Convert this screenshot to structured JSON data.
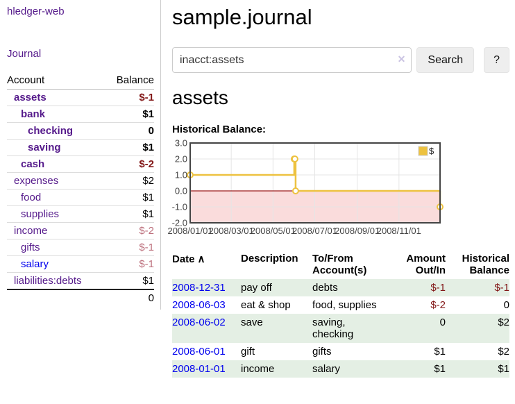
{
  "app": {
    "brand": "hledger-web"
  },
  "sidebar": {
    "journal_link": "Journal",
    "table": {
      "headers": {
        "account": "Account",
        "balance": "Balance"
      },
      "rows": [
        {
          "name": "assets",
          "indent": 1,
          "bold": true,
          "link": "purple",
          "balance": "$-1",
          "tone": "neg-strong"
        },
        {
          "name": "bank",
          "indent": 2,
          "bold": true,
          "link": "purple",
          "balance": "$1",
          "tone": ""
        },
        {
          "name": "checking",
          "indent": 3,
          "bold": true,
          "link": "purple",
          "balance": "0",
          "tone": ""
        },
        {
          "name": "saving",
          "indent": 3,
          "bold": true,
          "link": "purple",
          "balance": "$1",
          "tone": ""
        },
        {
          "name": "cash",
          "indent": 2,
          "bold": true,
          "link": "purple",
          "balance": "$-2",
          "tone": "neg-strong"
        },
        {
          "name": "expenses",
          "indent": 1,
          "bold": false,
          "link": "purple",
          "balance": "$2",
          "tone": ""
        },
        {
          "name": "food",
          "indent": 2,
          "bold": false,
          "link": "purple",
          "balance": "$1",
          "tone": ""
        },
        {
          "name": "supplies",
          "indent": 2,
          "bold": false,
          "link": "purple",
          "balance": "$1",
          "tone": ""
        },
        {
          "name": "income",
          "indent": 1,
          "bold": false,
          "link": "purple",
          "balance": "$-2",
          "tone": "neg-soft"
        },
        {
          "name": "gifts",
          "indent": 2,
          "bold": false,
          "link": "purple",
          "balance": "$-1",
          "tone": "neg-soft"
        },
        {
          "name": "salary",
          "indent": 2,
          "bold": false,
          "link": "blue",
          "balance": "$-1",
          "tone": "neg-soft"
        },
        {
          "name": "liabilities:debts",
          "indent": 1,
          "bold": false,
          "link": "purple",
          "balance": "$1",
          "tone": ""
        }
      ],
      "total": "0"
    }
  },
  "main": {
    "title": "sample.journal",
    "search": {
      "value": "inacct:assets",
      "clear_icon": "✕",
      "button": "Search",
      "help_button": "?"
    },
    "account_heading": "assets",
    "chart_heading": "Historical Balance:"
  },
  "chart_data": {
    "type": "line",
    "step": true,
    "title": "Historical Balance:",
    "series": [
      {
        "name": "$",
        "color": "#edc240",
        "points": [
          [
            "2008-01-01",
            1
          ],
          [
            "2008-06-01",
            2
          ],
          [
            "2008-06-02",
            2
          ],
          [
            "2008-06-03",
            0
          ],
          [
            "2008-12-31",
            -1
          ]
        ]
      }
    ],
    "xrange": [
      "2008-01-01",
      "2008-12-31"
    ],
    "ylim": [
      -2,
      3
    ],
    "yticks": [
      "3.0",
      "2.0",
      "1.0",
      "0.0",
      "-1.0",
      "-2.0"
    ],
    "xticks": [
      "2008/01/01",
      "2008/03/01",
      "2008/05/01",
      "2008/07/01",
      "2008/09/01",
      "2008/11/01"
    ],
    "grid": true,
    "legend_position": "top-right",
    "negative_region_shaded": true
  },
  "register": {
    "headers": {
      "date": "Date",
      "sort_icon": "∧",
      "description": "Description",
      "accounts": "To/From Account(s)",
      "amount": "Amount Out/In",
      "balance": "Historical Balance"
    },
    "rows": [
      {
        "date": "2008-12-31",
        "description": "pay off",
        "accounts": "debts",
        "amount": "$-1",
        "amount_neg": true,
        "balance": "$-1",
        "balance_neg": true
      },
      {
        "date": "2008-06-03",
        "description": "eat & shop",
        "accounts": "food, supplies",
        "amount": "$-2",
        "amount_neg": true,
        "balance": "0",
        "balance_neg": false
      },
      {
        "date": "2008-06-02",
        "description": "save",
        "accounts": "saving, checking",
        "amount": "0",
        "amount_neg": false,
        "balance": "$2",
        "balance_neg": false
      },
      {
        "date": "2008-06-01",
        "description": "gift",
        "accounts": "gifts",
        "amount": "$1",
        "amount_neg": false,
        "balance": "$2",
        "balance_neg": false
      },
      {
        "date": "2008-01-01",
        "description": "income",
        "accounts": "salary",
        "amount": "$1",
        "amount_neg": false,
        "balance": "$1",
        "balance_neg": false
      }
    ]
  },
  "colors": {
    "link_purple": "#551a8b",
    "link_blue": "#0000ee",
    "negative_strong": "#821717",
    "negative_soft": "#bc6f7c",
    "row_stripe": "#e4efe4",
    "chart_line": "#edc240",
    "chart_negative_fill": "#fadcdc",
    "chart_zero_line": "#9b1c1c",
    "chart_border": "#444444",
    "chart_grid": "#e5e5e5",
    "button_bg": "#eeeeee"
  }
}
